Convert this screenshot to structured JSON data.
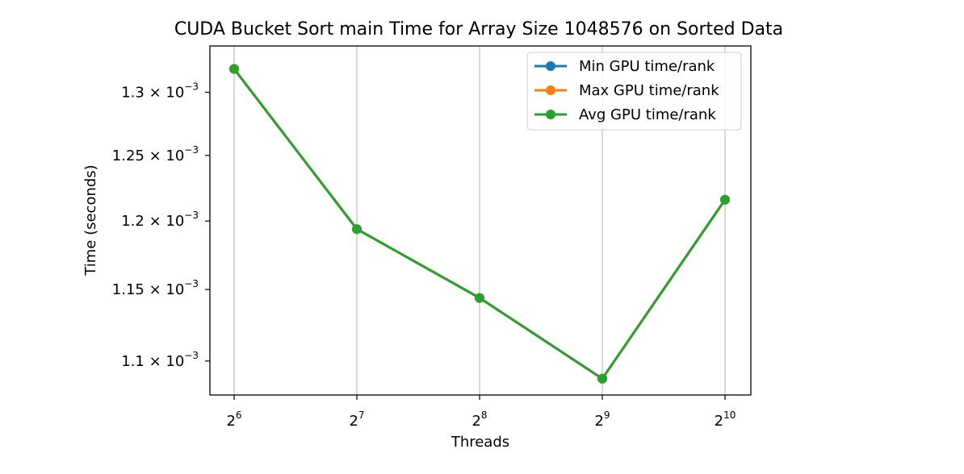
{
  "chart_data": {
    "type": "line",
    "title": "CUDA Bucket Sort main Time for Array Size 1048576 on Sorted Data",
    "xlabel": "Threads",
    "ylabel": "Time (seconds)",
    "x_scale": "log2",
    "y_scale": "log",
    "x": [
      64,
      128,
      256,
      512,
      1024
    ],
    "x_tick_labels": [
      {
        "base": "2",
        "exp": "6"
      },
      {
        "base": "2",
        "exp": "7"
      },
      {
        "base": "2",
        "exp": "8"
      },
      {
        "base": "2",
        "exp": "9"
      },
      {
        "base": "2",
        "exp": "10"
      }
    ],
    "y_ticks": [
      0.0011,
      0.00115,
      0.0012,
      0.00125,
      0.0013
    ],
    "y_tick_labels": [
      {
        "mant": "1.1 × 10",
        "exp": "−3"
      },
      {
        "mant": "1.15 × 10",
        "exp": "−3"
      },
      {
        "mant": "1.2 × 10",
        "exp": "−3"
      },
      {
        "mant": "1.25 × 10",
        "exp": "−3"
      },
      {
        "mant": "1.3 × 10",
        "exp": "−3"
      }
    ],
    "ylim": [
      0.001077,
      0.001338
    ],
    "xgrid": true,
    "ygrid": false,
    "legend_position": "top-right",
    "series": [
      {
        "name": "Min GPU time/rank",
        "color": "#1f77b4",
        "values": [
          0.001319,
          0.001194,
          0.001144,
          0.001088,
          0.001216
        ]
      },
      {
        "name": "Max GPU time/rank",
        "color": "#ff7f0e",
        "values": [
          0.001319,
          0.001194,
          0.001144,
          0.001088,
          0.001216
        ]
      },
      {
        "name": "Avg GPU time/rank",
        "color": "#2ca02c",
        "values": [
          0.001319,
          0.001194,
          0.001144,
          0.001088,
          0.001216
        ]
      }
    ]
  }
}
